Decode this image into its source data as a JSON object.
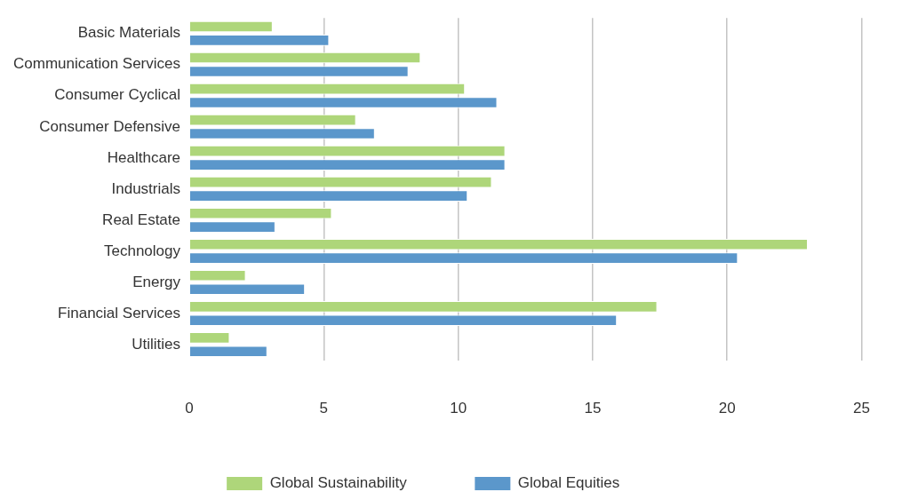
{
  "chart_data": {
    "type": "bar",
    "orientation": "horizontal",
    "categories": [
      "Basic Materials",
      "Communication Services",
      "Consumer Cyclical",
      "Consumer Defensive",
      "Healthcare",
      "Industrials",
      "Real Estate",
      "Technology",
      "Energy",
      "Financial Services",
      "Utilities"
    ],
    "series": [
      {
        "name": "Global Sustainability",
        "color": "#aed67a",
        "values": [
          3.1,
          8.6,
          10.25,
          6.2,
          11.75,
          11.25,
          5.3,
          23.0,
          2.1,
          17.4,
          1.5
        ]
      },
      {
        "name": "Global Equities",
        "color": "#5b97cb",
        "values": [
          5.2,
          8.15,
          11.45,
          6.9,
          11.75,
          10.35,
          3.2,
          20.4,
          4.3,
          15.9,
          2.9
        ]
      }
    ],
    "xlim": [
      0,
      25
    ],
    "xticks": [
      0,
      5,
      10,
      15,
      20,
      25
    ],
    "grid": "x",
    "legend": "bottom"
  }
}
